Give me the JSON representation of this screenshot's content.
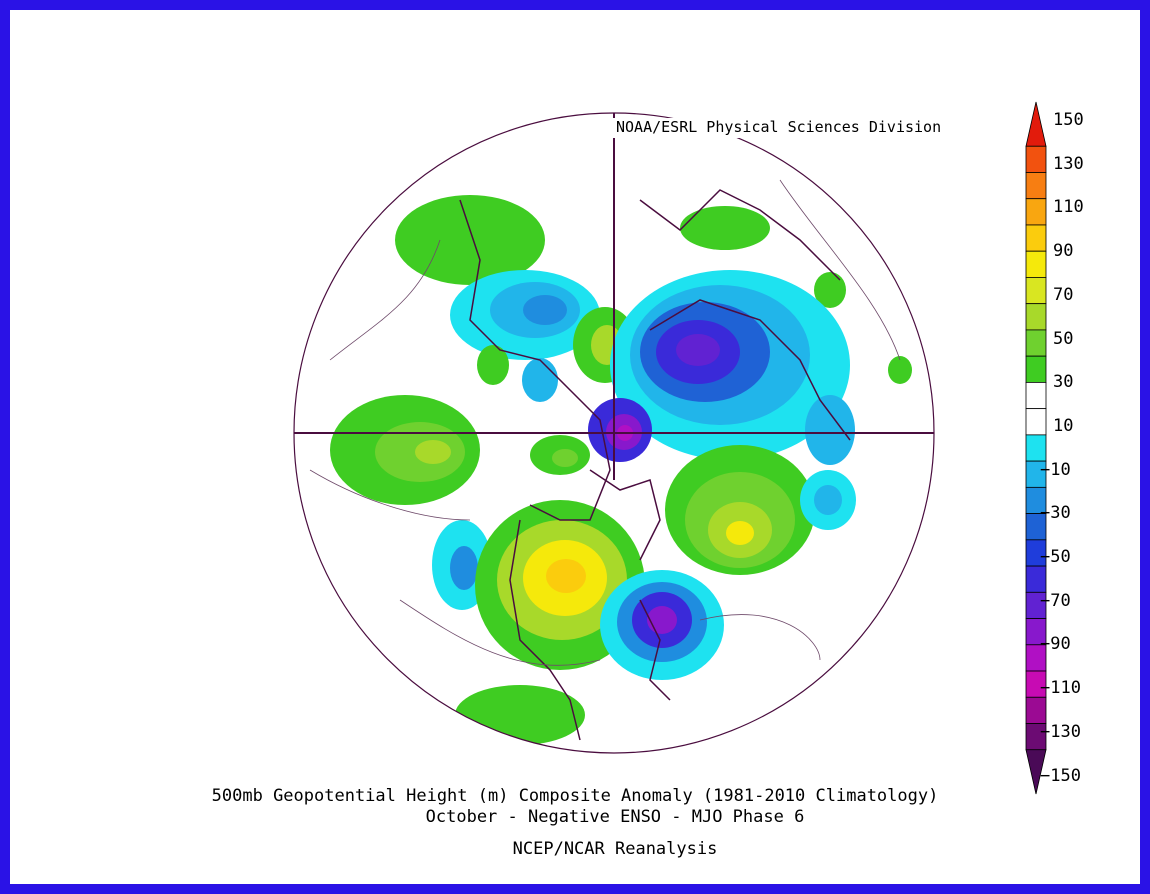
{
  "map": {
    "credit": "NOAA/ESRL Physical Sciences Division",
    "caption_line1": "500mb Geopotential Height (m) Composite Anomaly (1981-2010 Climatology)",
    "caption_line2": "October - Negative ENSO - MJO Phase 6",
    "caption_line3": "NCEP/NCAR Reanalysis",
    "projection": "north-polar-stereographic"
  },
  "colorbar": {
    "labels": [
      "150",
      "130",
      "110",
      "90",
      "70",
      "50",
      "30",
      "10",
      "-10",
      "-30",
      "-50",
      "-70",
      "-90",
      "-110",
      "-130",
      "-150"
    ],
    "colors": [
      "#e21b0c",
      "#f2520f",
      "#f77e12",
      "#f9a610",
      "#fbcc0d",
      "#f5e90b",
      "#d9e621",
      "#a8d92a",
      "#6fd12f",
      "#3fcc22",
      "#ffffff",
      "#ffffff",
      "#1ee2f0",
      "#21b5ea",
      "#1f8ddf",
      "#1e62d5",
      "#1f3ddb",
      "#3a2ad9",
      "#6122d2",
      "#8818cc",
      "#b010c4",
      "#c70bb3",
      "#9b0a93",
      "#6c0b73",
      "#4a0a57"
    ]
  },
  "anomalies": [
    {
      "region": "North Atlantic / Europe",
      "sign": "positive",
      "peak": 30
    },
    {
      "region": "Siberia",
      "sign": "negative",
      "peak": -90
    },
    {
      "region": "North Pole",
      "sign": "negative",
      "peak": -110
    },
    {
      "region": "Western North America",
      "sign": "positive",
      "peak": 70
    },
    {
      "region": "Eastern North America",
      "sign": "negative",
      "peak": -110
    },
    {
      "region": "North Atlantic Ocean",
      "sign": "positive",
      "peak": 50
    }
  ]
}
